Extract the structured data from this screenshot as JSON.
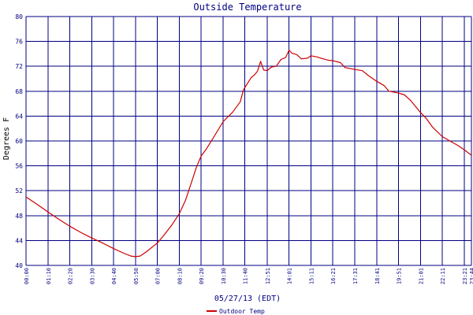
{
  "chart_data": {
    "type": "line",
    "title": "Outside Temperature",
    "ylabel": "Degrees F",
    "xlabel": "05/27/13 (EDT)",
    "ylim": [
      40,
      80
    ],
    "y_ticks": [
      40,
      44,
      48,
      52,
      56,
      60,
      64,
      68,
      72,
      76,
      80
    ],
    "x_range": [
      "00:00",
      "23:44"
    ],
    "x_ticks": [
      "00:00",
      "01:10",
      "02:20",
      "03:30",
      "04:40",
      "05:50",
      "07:00",
      "08:10",
      "09:20",
      "10:30",
      "11:40",
      "12:51",
      "14:01",
      "15:11",
      "16:21",
      "17:31",
      "18:41",
      "19:51",
      "21:01",
      "22:11",
      "23:21",
      "23:44"
    ],
    "grid": true,
    "legend_position": "bottom-left",
    "colors": {
      "series": "#cc0000",
      "grid": "#000080",
      "text": "#000080"
    },
    "series": [
      {
        "name": "Outdoor Temp",
        "points": [
          [
            "00:00",
            51.0
          ],
          [
            "00:30",
            50.0
          ],
          [
            "01:10",
            48.6
          ],
          [
            "01:45",
            47.4
          ],
          [
            "02:20",
            46.3
          ],
          [
            "02:55",
            45.3
          ],
          [
            "03:30",
            44.4
          ],
          [
            "04:05",
            43.6
          ],
          [
            "04:40",
            42.7
          ],
          [
            "05:15",
            41.9
          ],
          [
            "05:35",
            41.5
          ],
          [
            "05:50",
            41.4
          ],
          [
            "06:05",
            41.5
          ],
          [
            "06:25",
            42.2
          ],
          [
            "06:50",
            43.2
          ],
          [
            "07:00",
            43.6
          ],
          [
            "07:20",
            44.8
          ],
          [
            "07:45",
            46.4
          ],
          [
            "08:10",
            48.3
          ],
          [
            "08:30",
            50.5
          ],
          [
            "08:50",
            53.5
          ],
          [
            "09:05",
            55.8
          ],
          [
            "09:20",
            57.6
          ],
          [
            "09:35",
            58.6
          ],
          [
            "09:55",
            60.2
          ],
          [
            "10:30",
            63.1
          ],
          [
            "11:00",
            64.6
          ],
          [
            "11:25",
            66.3
          ],
          [
            "11:35",
            68.2
          ],
          [
            "11:40",
            68.6
          ],
          [
            "11:50",
            69.4
          ],
          [
            "12:00",
            70.2
          ],
          [
            "12:10",
            70.6
          ],
          [
            "12:20",
            71.2
          ],
          [
            "12:30",
            72.8
          ],
          [
            "12:40",
            71.4
          ],
          [
            "12:51",
            71.3
          ],
          [
            "13:05",
            71.9
          ],
          [
            "13:20",
            72.0
          ],
          [
            "13:35",
            73.1
          ],
          [
            "13:50",
            73.4
          ],
          [
            "14:01",
            74.6
          ],
          [
            "14:10",
            74.1
          ],
          [
            "14:25",
            73.9
          ],
          [
            "14:40",
            73.2
          ],
          [
            "15:00",
            73.3
          ],
          [
            "15:11",
            73.7
          ],
          [
            "15:30",
            73.5
          ],
          [
            "15:50",
            73.2
          ],
          [
            "16:05",
            73.0
          ],
          [
            "16:21",
            72.9
          ],
          [
            "16:45",
            72.6
          ],
          [
            "17:00",
            71.8
          ],
          [
            "17:31",
            71.5
          ],
          [
            "17:55",
            71.3
          ],
          [
            "18:15",
            70.5
          ],
          [
            "18:41",
            69.6
          ],
          [
            "19:05",
            68.9
          ],
          [
            "19:20",
            68.0
          ],
          [
            "19:51",
            67.7
          ],
          [
            "20:10",
            67.4
          ],
          [
            "20:30",
            66.5
          ],
          [
            "21:01",
            64.6
          ],
          [
            "21:20",
            63.6
          ],
          [
            "21:40",
            62.2
          ],
          [
            "22:11",
            60.7
          ],
          [
            "22:35",
            60.0
          ],
          [
            "23:00",
            59.3
          ],
          [
            "23:21",
            58.6
          ],
          [
            "23:44",
            57.7
          ]
        ]
      }
    ]
  }
}
